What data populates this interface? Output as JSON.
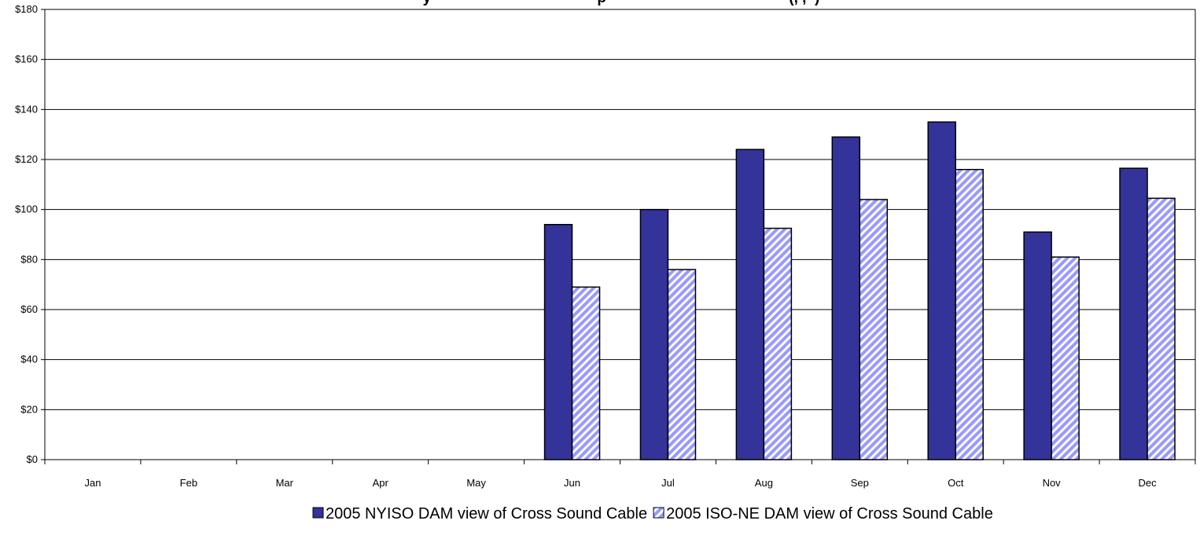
{
  "chart_data": {
    "type": "bar",
    "title": "y                                        p                                            (, ,  )",
    "categories": [
      "Jan",
      "Feb",
      "Mar",
      "Apr",
      "May",
      "Jun",
      "Jul",
      "Aug",
      "Sep",
      "Oct",
      "Nov",
      "Dec"
    ],
    "series": [
      {
        "name": "2005 NYISO DAM view of Cross Sound Cable",
        "color": "#333399",
        "pattern": "solid",
        "values": [
          null,
          null,
          null,
          null,
          null,
          94,
          100,
          124,
          129,
          135,
          91,
          116.5
        ]
      },
      {
        "name": "2005 ISO-NE DAM view of Cross Sound Cable",
        "color": "#9999ff",
        "pattern": "diagonal-stripes",
        "values": [
          null,
          null,
          null,
          null,
          null,
          69,
          76,
          92.5,
          104,
          116,
          81,
          104.5
        ]
      }
    ],
    "ylim": [
      0,
      180
    ],
    "yticks": [
      0,
      20,
      40,
      60,
      80,
      100,
      120,
      140,
      160,
      180
    ],
    "ytick_labels": [
      "$0",
      "$20",
      "$40",
      "$60",
      "$80",
      "$100",
      "$120",
      "$140",
      "$160",
      "$180"
    ],
    "xlabel": "",
    "ylabel": "",
    "grid": "horizontal",
    "legend_position": "bottom"
  }
}
